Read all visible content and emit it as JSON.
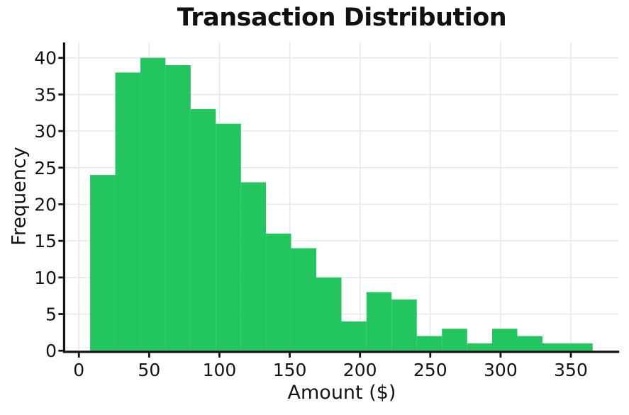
{
  "chart_data": {
    "type": "bar",
    "subtype": "histogram",
    "title": "Transaction Distribution",
    "xlabel": "Amount ($)",
    "ylabel": "Frequency",
    "bin_edges": [
      8.0,
      25.9,
      43.8,
      61.6,
      79.5,
      97.4,
      115.3,
      133.1,
      151.0,
      168.9,
      186.8,
      204.6,
      222.5,
      240.4,
      258.3,
      276.2,
      294.0,
      311.9,
      329.8,
      347.7,
      365.5
    ],
    "frequencies": [
      24,
      38,
      40,
      39,
      33,
      31,
      23,
      16,
      14,
      10,
      4,
      8,
      7,
      2,
      3,
      1,
      3,
      2,
      1,
      1
    ],
    "x_ticks": [
      0,
      50,
      100,
      150,
      200,
      250,
      300,
      350
    ],
    "y_ticks": [
      0,
      5,
      10,
      15,
      20,
      25,
      30,
      35,
      40
    ],
    "xlim": [
      -9.7,
      383.8
    ],
    "ylim": [
      0,
      42.1
    ],
    "grid": true,
    "legend": false,
    "bar_color": "#22c55e"
  },
  "colors": {
    "background": "#ffffff",
    "bar": "#22c55e",
    "grid": "#e9e9e9",
    "axis": "#141414",
    "text": "#141414"
  }
}
